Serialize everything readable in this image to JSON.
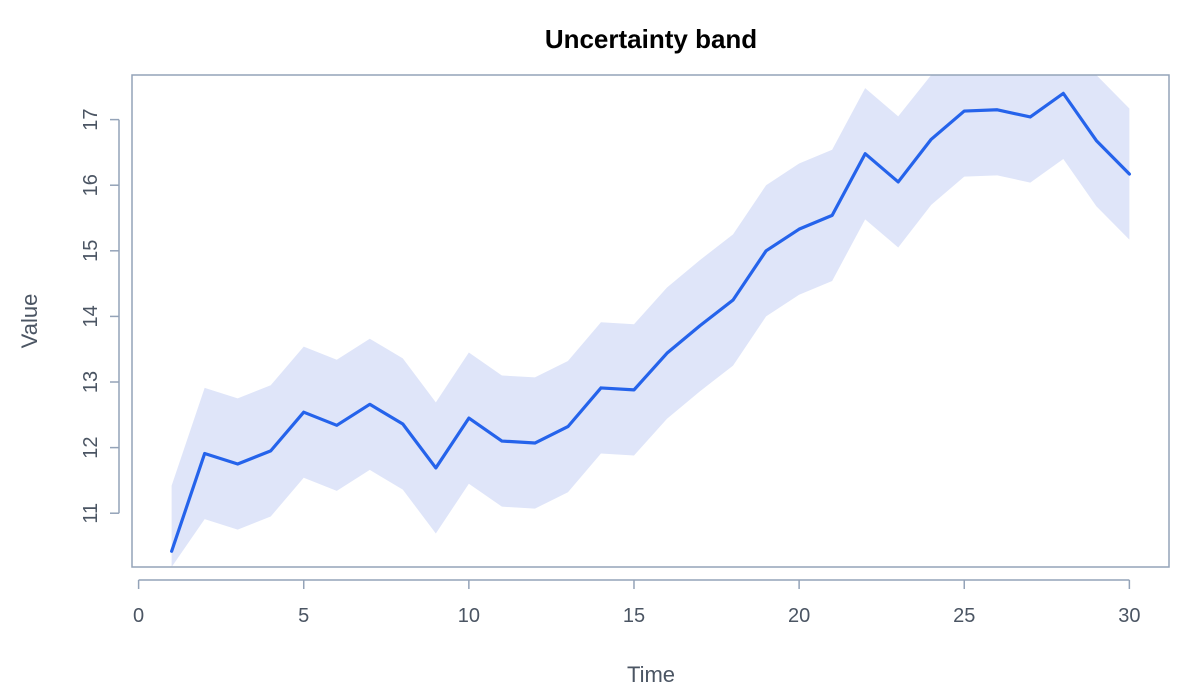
{
  "chart_data": {
    "type": "line",
    "title": "Uncertainty band",
    "xlabel": "Time",
    "ylabel": "Value",
    "xlim": [
      -0.2,
      31.2
    ],
    "ylim": [
      10.18,
      17.68
    ],
    "xticks": [
      0,
      5,
      10,
      15,
      20,
      25,
      30
    ],
    "yticks": [
      11,
      12,
      13,
      14,
      15,
      16,
      17
    ],
    "grid": false,
    "legend": "none",
    "series": [
      {
        "x": [
          1,
          2,
          3,
          4,
          5,
          6,
          7,
          8,
          9,
          10,
          11,
          12,
          13,
          14,
          15,
          16,
          17,
          18,
          19,
          20,
          21,
          22,
          23,
          24,
          25,
          26,
          27,
          28,
          29,
          30
        ],
        "y": [
          10.42,
          11.91,
          11.75,
          11.95,
          12.54,
          12.34,
          12.66,
          12.36,
          11.69,
          12.45,
          12.1,
          12.07,
          12.32,
          12.91,
          12.88,
          13.44,
          13.86,
          14.25,
          15.0,
          15.33,
          15.54,
          16.48,
          16.05,
          16.7,
          17.13,
          17.15,
          17.04,
          17.4,
          16.68,
          16.17
        ],
        "lower": [
          10.18,
          10.91,
          10.75,
          10.95,
          11.54,
          11.34,
          11.66,
          11.36,
          10.69,
          11.45,
          11.1,
          11.07,
          11.32,
          11.91,
          11.88,
          12.44,
          12.86,
          13.25,
          14.0,
          14.33,
          14.54,
          15.48,
          15.05,
          15.7,
          16.13,
          16.15,
          16.04,
          16.4,
          15.68,
          15.17
        ],
        "upper": [
          11.42,
          12.91,
          12.75,
          12.95,
          13.54,
          13.34,
          13.66,
          13.36,
          12.69,
          13.45,
          13.1,
          13.07,
          13.32,
          13.91,
          13.88,
          14.44,
          14.86,
          15.25,
          16.0,
          16.33,
          16.54,
          17.48,
          17.05,
          17.68,
          17.68,
          17.68,
          17.68,
          17.68,
          17.68,
          17.17
        ]
      }
    ],
    "colors": {
      "line": "#2563eb",
      "band": "#dfe5f9",
      "frame": "#94a3b8",
      "axis": "#94a3b8",
      "text": "#4b5563",
      "title": "#000000"
    }
  }
}
